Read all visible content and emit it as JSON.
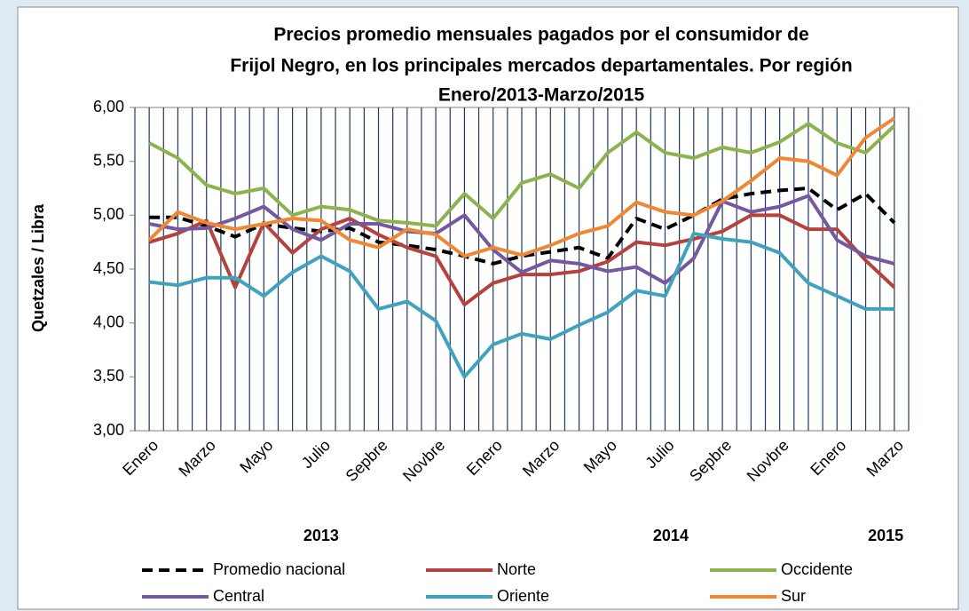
{
  "chart_data": {
    "type": "line",
    "title": [
      "Precios promedio mensuales pagados por el consumidor de",
      "Frijol Negro, en los principales mercados departamentales. Por región",
      "Enero/2013-Marzo/2015"
    ],
    "y_label": "Quetzales / Libra",
    "year_labels": [
      "2013",
      "2014",
      "2015"
    ],
    "categories": [
      "Enero",
      null,
      "Marzo",
      null,
      "Mayo",
      null,
      "Julio",
      null,
      "Sepbre",
      null,
      "Novbre",
      null,
      "Enero",
      null,
      "Marzo",
      null,
      "Mayo",
      null,
      "Julio",
      null,
      "Sepbre",
      null,
      "Novbre",
      null,
      "Enero",
      null,
      "Marzo"
    ],
    "ylim": [
      3,
      6
    ],
    "yticks": [
      {
        "value": 3,
        "label": "3,00"
      },
      {
        "value": 3.5,
        "label": "3,50"
      },
      {
        "value": 4,
        "label": "4,00"
      },
      {
        "value": 4.5,
        "label": "4,50"
      },
      {
        "value": 5,
        "label": "5,00"
      },
      {
        "value": 5.5,
        "label": "5,50"
      },
      {
        "value": 6,
        "label": "6,00"
      }
    ],
    "vertical_grid": true,
    "series": [
      {
        "name": "Promedio nacional",
        "color": "#000000",
        "dashed": true,
        "values": [
          4.98,
          4.98,
          4.9,
          4.8,
          4.92,
          4.88,
          4.85,
          4.88,
          4.75,
          4.72,
          4.68,
          4.62,
          4.55,
          4.62,
          4.66,
          4.7,
          4.6,
          4.97,
          4.87,
          5.0,
          5.15,
          5.2,
          5.23,
          5.25,
          5.05,
          5.2,
          4.93
        ]
      },
      {
        "name": "Norte",
        "color": "#b5423c",
        "values": [
          4.75,
          4.83,
          4.95,
          4.33,
          4.93,
          4.65,
          4.87,
          4.97,
          4.82,
          4.7,
          4.62,
          4.17,
          4.37,
          4.45,
          4.45,
          4.48,
          4.57,
          4.75,
          4.72,
          4.78,
          4.85,
          5.0,
          5.0,
          4.87,
          4.87,
          4.58,
          4.33
        ]
      },
      {
        "name": "Occidente",
        "color": "#8db44c",
        "values": [
          5.67,
          5.53,
          5.28,
          5.2,
          5.25,
          5.0,
          5.08,
          5.05,
          4.95,
          4.93,
          4.9,
          5.2,
          4.97,
          5.3,
          5.38,
          5.25,
          5.58,
          5.77,
          5.58,
          5.53,
          5.63,
          5.58,
          5.68,
          5.85,
          5.67,
          5.58,
          5.83
        ]
      },
      {
        "name": "Central",
        "color": "#7458a0",
        "values": [
          4.92,
          4.87,
          4.88,
          4.97,
          5.08,
          4.87,
          4.77,
          4.92,
          4.92,
          4.85,
          4.83,
          5.0,
          4.68,
          4.47,
          4.58,
          4.55,
          4.48,
          4.52,
          4.37,
          4.6,
          5.13,
          5.03,
          5.08,
          5.18,
          4.77,
          4.62,
          4.55
        ]
      },
      {
        "name": "Oriente",
        "color": "#3fa3bd",
        "values": [
          4.38,
          4.35,
          4.42,
          4.42,
          4.25,
          4.47,
          4.62,
          4.48,
          4.13,
          4.2,
          4.02,
          3.5,
          3.8,
          3.9,
          3.85,
          3.98,
          4.1,
          4.3,
          4.25,
          4.83,
          4.78,
          4.75,
          4.65,
          4.37,
          4.25,
          4.13,
          4.13
        ]
      },
      {
        "name": "Sur",
        "color": "#ef8733",
        "values": [
          4.77,
          5.03,
          4.93,
          4.87,
          4.92,
          4.97,
          4.95,
          4.77,
          4.7,
          4.87,
          4.82,
          4.62,
          4.7,
          4.63,
          4.72,
          4.83,
          4.9,
          5.12,
          5.03,
          5.0,
          5.13,
          5.32,
          5.53,
          5.5,
          5.37,
          5.72,
          5.9
        ]
      }
    ]
  }
}
